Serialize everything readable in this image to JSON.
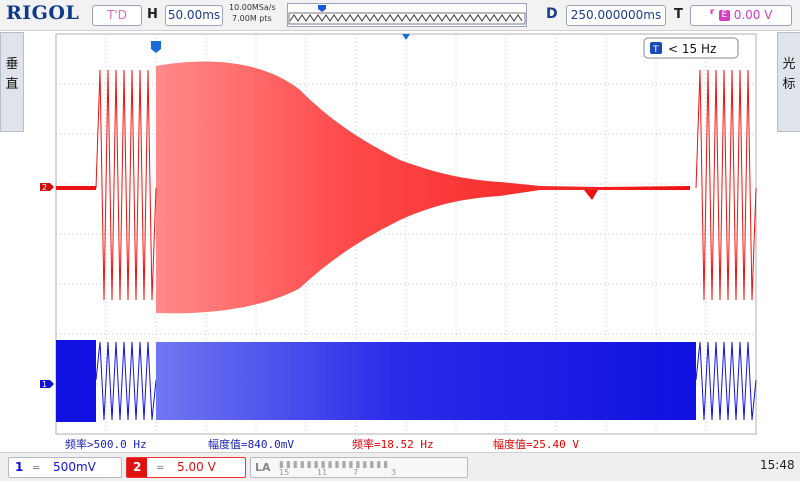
{
  "topbar": {
    "logo": "RIGOL",
    "run_state": "T'D",
    "horizontal_label": "H",
    "timebase": "50.00ms",
    "sample_rate": "10.00MSa/s",
    "memory_depth": "7.00M pts",
    "delay_label": "D",
    "delay": "250.000000ms",
    "trigger_label": "T",
    "trigger_level": "0.00 V"
  },
  "sidetabs": {
    "left": [
      "垂",
      "直"
    ],
    "right": [
      "光",
      "标"
    ]
  },
  "screen": {
    "trigger_freq": "< 15 Hz",
    "ch2_marker": "2",
    "ch1_marker": "1"
  },
  "measurements": [
    {
      "text": "频率>500.0 Hz",
      "color": "#1a22b8"
    },
    {
      "text": "幅度值=840.0mV",
      "color": "#1a22b8"
    },
    {
      "text": "频率=18.52 Hz",
      "color": "#e00000"
    },
    {
      "text": "幅度值=25.40 V",
      "color": "#e00000"
    }
  ],
  "bottombar": {
    "ch1_num": "1",
    "ch1_scale": "500mV",
    "ch2_num": "2",
    "ch2_scale": "5.00 V",
    "la_label": "LA",
    "la_digits": [
      "15",
      "11",
      "7",
      "3"
    ],
    "clock": "15:48"
  },
  "colors": {
    "ch1": "#1010e0",
    "ch2": "#ee1111",
    "grid": "#c8c8c8",
    "brand": "#0a3a8c"
  }
}
